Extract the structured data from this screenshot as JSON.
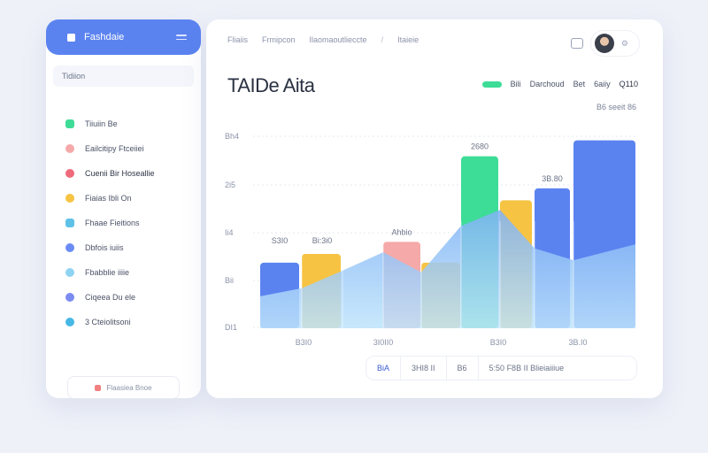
{
  "sidebar": {
    "title": "Fashdaie",
    "section_label": "Tidiion",
    "items": [
      {
        "label": "Tiiuiin Be",
        "color": "#3ddc97"
      },
      {
        "label": "Eailcitipy Ftceiiei",
        "color": "#f5a9a9"
      },
      {
        "label": "Cuenii Bir Hoseallie",
        "color": "#ef6a7a"
      },
      {
        "label": "Fiaias Ibli On",
        "color": "#f6c343"
      },
      {
        "label": "Fhaae Fieitions",
        "color": "#5ec2e8"
      },
      {
        "label": "Dbfois iuiis",
        "color": "#6b8cf5"
      },
      {
        "label": "Fbabblie iiiie",
        "color": "#8fd3f2"
      },
      {
        "label": "Ciqeea Du ele",
        "color": "#7c8cf0"
      },
      {
        "label": "3 Cteiolitsoni",
        "color": "#47b8e6"
      }
    ],
    "footer_label": "Flaasiea Bnoe"
  },
  "header": {
    "crumbs": [
      "Fliaiis",
      "Frmipcon",
      "Ilaomaoutlieccte",
      "Itaieie"
    ],
    "separator": "/"
  },
  "page_title": "TAIDe Aita",
  "legend": {
    "label1": "Bili",
    "label2": "Darchoud",
    "label3": "Bet",
    "label4": "6aiiy",
    "badge": "Q110"
  },
  "subnote": "B6 seeit 86",
  "chart_data": {
    "type": "bar",
    "y_tick_labels": [
      "Bh4",
      "2i5",
      "Ii4",
      "Bii",
      "DI1"
    ],
    "bars": [
      {
        "value": 82,
        "color": "#5b83f0",
        "label": ""
      },
      {
        "value": 93,
        "color": "#f6c343",
        "label": ""
      },
      {
        "value": 108,
        "color": "#f5a9a9",
        "label": "Ahbio"
      },
      {
        "value": 82,
        "color": "#f6c343",
        "label": ""
      },
      {
        "value": 215,
        "color": "#3ddc97",
        "label": "2680"
      },
      {
        "value": 160,
        "color": "#f6c343",
        "label": ""
      },
      {
        "value": 175,
        "color": "#5b83f0",
        "label": "3B.80"
      },
      {
        "value": 235,
        "color": "#5b83f0",
        "label": ""
      }
    ],
    "group_labels": [
      "S3I0",
      "Bi:3i0"
    ],
    "x_tick_labels": [
      "B3I0",
      "3I0II0",
      "B3I0",
      "3B.I0"
    ],
    "area_series": [
      40,
      50,
      72,
      95,
      70,
      148,
      100,
      105
    ],
    "ymax": 260
  },
  "controls": [
    "BiA",
    "3HI8 II",
    "B6",
    "5:50 F8B II Blieiaiiiue"
  ]
}
